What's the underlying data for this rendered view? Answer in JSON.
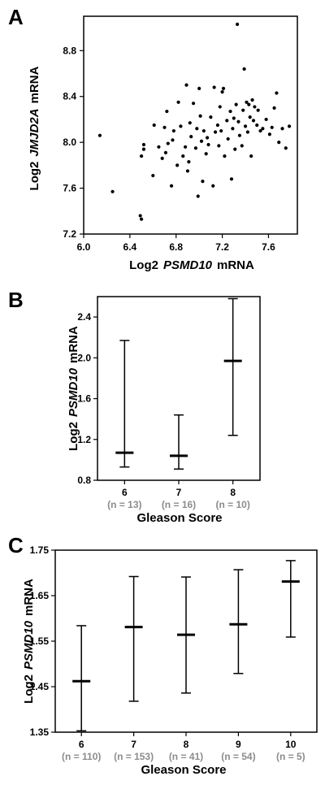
{
  "chart_data": [
    {
      "panel": "A",
      "type": "scatter",
      "xlabel": {
        "prefix": "Log2",
        "gene": "PSMD10",
        "suffix": "mRNA"
      },
      "ylabel": {
        "prefix": "Log2",
        "gene": "JMJD2A",
        "suffix": "mRNA"
      },
      "xlim": [
        6.0,
        7.85
      ],
      "ylim": [
        7.2,
        9.1
      ],
      "xticks": [
        "6.0",
        "6.4",
        "6.8",
        "7.2",
        "7.6"
      ],
      "yticks": [
        "7.2",
        "7.6",
        "8.0",
        "8.4",
        "8.8"
      ],
      "grid": false,
      "points": [
        [
          6.14,
          8.06
        ],
        [
          6.25,
          7.57
        ],
        [
          6.49,
          7.36
        ],
        [
          6.5,
          7.33
        ],
        [
          6.5,
          7.88
        ],
        [
          6.52,
          7.94
        ],
        [
          6.52,
          7.98
        ],
        [
          6.6,
          7.71
        ],
        [
          6.61,
          8.15
        ],
        [
          6.65,
          7.96
        ],
        [
          6.68,
          7.86
        ],
        [
          6.7,
          8.13
        ],
        [
          6.71,
          7.91
        ],
        [
          6.72,
          8.27
        ],
        [
          6.73,
          7.99
        ],
        [
          6.76,
          7.62
        ],
        [
          6.77,
          8.02
        ],
        [
          6.78,
          8.1
        ],
        [
          6.81,
          7.8
        ],
        [
          6.82,
          8.35
        ],
        [
          6.84,
          8.14
        ],
        [
          6.86,
          7.88
        ],
        [
          6.88,
          7.96
        ],
        [
          6.89,
          8.5
        ],
        [
          6.9,
          7.75
        ],
        [
          6.91,
          7.83
        ],
        [
          6.92,
          8.17
        ],
        [
          6.93,
          8.05
        ],
        [
          6.95,
          8.34
        ],
        [
          6.97,
          7.95
        ],
        [
          6.98,
          8.12
        ],
        [
          6.99,
          7.53
        ],
        [
          7.0,
          8.47
        ],
        [
          7.01,
          8.23
        ],
        [
          7.02,
          8.01
        ],
        [
          7.03,
          7.66
        ],
        [
          7.04,
          8.1
        ],
        [
          7.06,
          7.9
        ],
        [
          7.07,
          8.04
        ],
        [
          7.08,
          7.98
        ],
        [
          7.1,
          8.22
        ],
        [
          7.12,
          7.62
        ],
        [
          7.13,
          8.48
        ],
        [
          7.14,
          8.09
        ],
        [
          7.16,
          8.15
        ],
        [
          7.17,
          7.97
        ],
        [
          7.18,
          8.31
        ],
        [
          7.19,
          8.1
        ],
        [
          7.2,
          8.44
        ],
        [
          7.21,
          8.47
        ],
        [
          7.22,
          7.88
        ],
        [
          7.24,
          8.19
        ],
        [
          7.25,
          8.03
        ],
        [
          7.27,
          8.27
        ],
        [
          7.28,
          7.68
        ],
        [
          7.29,
          8.12
        ],
        [
          7.3,
          8.21
        ],
        [
          7.31,
          7.94
        ],
        [
          7.32,
          8.33
        ],
        [
          7.33,
          9.03
        ],
        [
          7.34,
          8.18
        ],
        [
          7.35,
          8.06
        ],
        [
          7.37,
          7.97
        ],
        [
          7.38,
          8.28
        ],
        [
          7.39,
          8.64
        ],
        [
          7.4,
          8.14
        ],
        [
          7.41,
          8.35
        ],
        [
          7.42,
          8.09
        ],
        [
          7.43,
          8.33
        ],
        [
          7.44,
          8.22
        ],
        [
          7.45,
          7.88
        ],
        [
          7.46,
          8.37
        ],
        [
          7.47,
          8.19
        ],
        [
          7.48,
          8.31
        ],
        [
          7.5,
          8.15
        ],
        [
          7.51,
          8.28
        ],
        [
          7.53,
          8.1
        ],
        [
          7.55,
          8.12
        ],
        [
          7.58,
          8.2
        ],
        [
          7.61,
          8.07
        ],
        [
          7.63,
          8.13
        ],
        [
          7.65,
          8.3
        ],
        [
          7.67,
          8.43
        ],
        [
          7.69,
          8.0
        ],
        [
          7.72,
          8.12
        ],
        [
          7.75,
          7.95
        ],
        [
          7.78,
          8.14
        ]
      ]
    },
    {
      "panel": "B",
      "type": "range",
      "ylabel": {
        "prefix": "Log2",
        "gene": "PSMD10",
        "suffix": "mRNA"
      },
      "xlabel": "Gleason Score",
      "ylim": [
        0.8,
        2.6
      ],
      "yticks": [
        "0.8",
        "1.2",
        "1.6",
        "2.0",
        "2.4"
      ],
      "categories": [
        "6",
        "7",
        "8"
      ],
      "n_labels": [
        "(n = 13)",
        "(n = 16)",
        "(n = 10)"
      ],
      "median": [
        1.07,
        1.04,
        1.97
      ],
      "min": [
        0.93,
        0.91,
        1.24
      ],
      "max": [
        2.17,
        1.44,
        2.58
      ]
    },
    {
      "panel": "C",
      "type": "range",
      "ylabel": {
        "prefix": "Log2",
        "gene": "PSMD10",
        "suffix": "mRNA"
      },
      "xlabel": "Gleason Score",
      "ylim": [
        1.35,
        1.75
      ],
      "yticks": [
        "1.35",
        "1.45",
        "1.55",
        "1.65",
        "1.75"
      ],
      "categories": [
        "6",
        "7",
        "8",
        "9",
        "10"
      ],
      "n_labels": [
        "(n = 110)",
        "(n = 153)",
        "(n = 41)",
        "(n = 54)",
        "(n = 5)"
      ],
      "median": [
        1.462,
        1.581,
        1.564,
        1.587,
        1.681
      ],
      "min": [
        1.353,
        1.418,
        1.436,
        1.479,
        1.559
      ],
      "max": [
        1.584,
        1.692,
        1.691,
        1.707,
        1.727
      ]
    }
  ]
}
